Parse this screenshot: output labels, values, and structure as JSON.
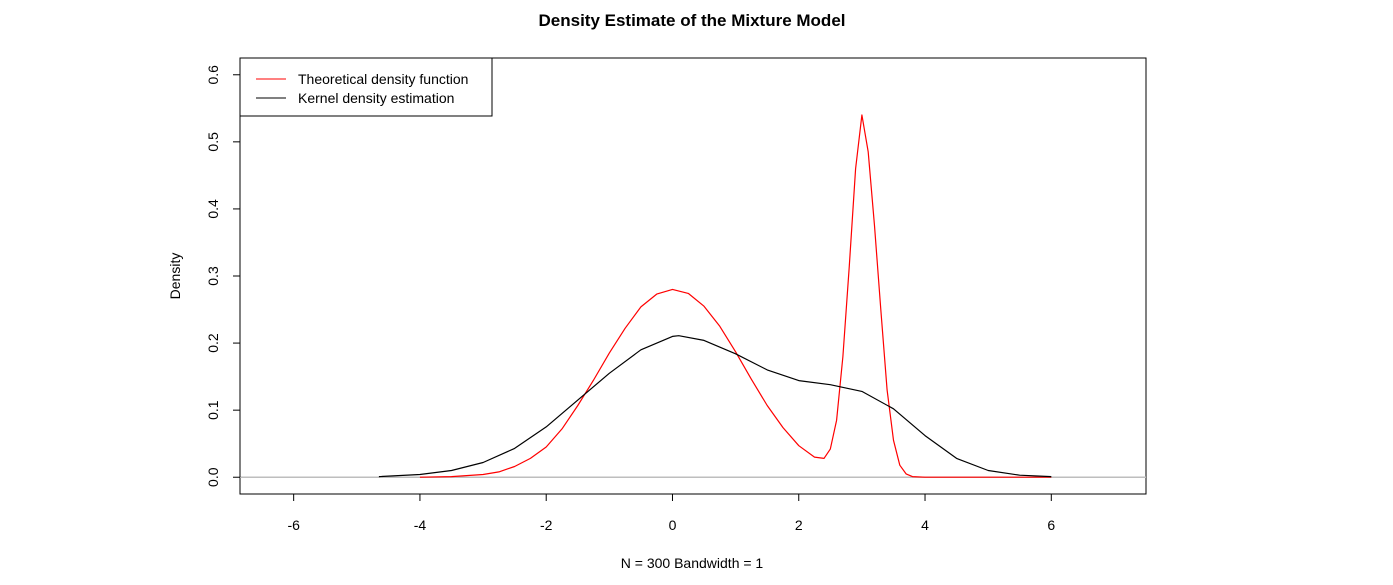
{
  "chart_data": {
    "type": "line",
    "title": "Density Estimate of the Mixture Model",
    "xlabel": "N = 300   Bandwidth = 1",
    "ylabel": "Density",
    "xlim": [
      -6.85,
      7.5
    ],
    "ylim": [
      -0.025,
      0.625
    ],
    "x_ticks": [
      -6,
      -4,
      -2,
      0,
      2,
      4,
      6
    ],
    "y_ticks": [
      0.0,
      0.1,
      0.2,
      0.3,
      0.4,
      0.5,
      0.6
    ],
    "x_tick_labels": [
      "-6",
      "-4",
      "-2",
      "0",
      "2",
      "4",
      "6"
    ],
    "y_tick_labels": [
      "0.0",
      "0.1",
      "0.2",
      "0.3",
      "0.4",
      "0.5",
      "0.6"
    ],
    "grid": false,
    "baseline": {
      "y": 0,
      "color": "#bebebe"
    },
    "legend": {
      "position": "top-left",
      "entries": [
        {
          "label": "Theoretical density function",
          "color": "#ff0000"
        },
        {
          "label": "Kernel density estimation",
          "color": "#000000"
        }
      ]
    },
    "series": [
      {
        "name": "Theoretical density function",
        "color": "#ff0000",
        "x": [
          -4.0,
          -3.5,
          -3.0,
          -2.75,
          -2.5,
          -2.25,
          -2.0,
          -1.75,
          -1.5,
          -1.25,
          -1.0,
          -0.75,
          -0.5,
          -0.25,
          0.0,
          0.25,
          0.5,
          0.75,
          1.0,
          1.25,
          1.5,
          1.75,
          2.0,
          2.25,
          2.4,
          2.5,
          2.6,
          2.7,
          2.8,
          2.9,
          3.0,
          3.1,
          3.2,
          3.3,
          3.4,
          3.5,
          3.6,
          3.7,
          3.8,
          4.0,
          5.0,
          6.0
        ],
        "y": [
          0.0,
          0.001,
          0.004,
          0.008,
          0.016,
          0.028,
          0.045,
          0.072,
          0.107,
          0.145,
          0.185,
          0.222,
          0.254,
          0.273,
          0.28,
          0.274,
          0.255,
          0.225,
          0.187,
          0.146,
          0.107,
          0.074,
          0.047,
          0.03,
          0.028,
          0.042,
          0.085,
          0.18,
          0.315,
          0.46,
          0.54,
          0.485,
          0.375,
          0.25,
          0.13,
          0.055,
          0.018,
          0.005,
          0.001,
          0.0,
          0.0,
          0.0
        ]
      },
      {
        "name": "Kernel density estimation",
        "color": "#000000",
        "x": [
          -4.65,
          -4.0,
          -3.5,
          -3.0,
          -2.5,
          -2.0,
          -1.5,
          -1.0,
          -0.5,
          0.0,
          0.1,
          0.5,
          1.0,
          1.5,
          2.0,
          2.5,
          3.0,
          3.5,
          4.0,
          4.5,
          5.0,
          5.5,
          6.0
        ],
        "y": [
          0.001,
          0.004,
          0.01,
          0.022,
          0.043,
          0.075,
          0.115,
          0.155,
          0.19,
          0.21,
          0.211,
          0.204,
          0.184,
          0.16,
          0.144,
          0.138,
          0.128,
          0.102,
          0.062,
          0.028,
          0.01,
          0.003,
          0.001
        ]
      }
    ]
  }
}
